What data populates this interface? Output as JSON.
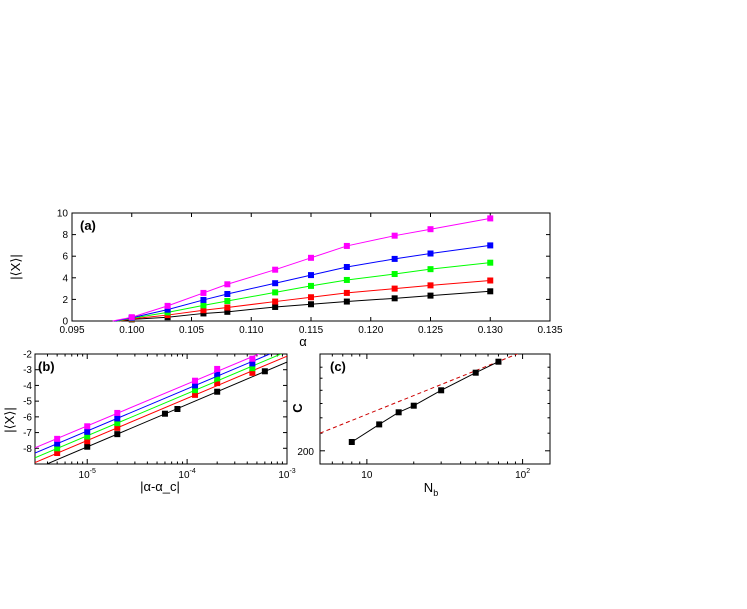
{
  "chart_data": [
    {
      "type": "line",
      "panel_label": "(a)",
      "xlabel": "α",
      "ylabel": "|⟨X⟩|",
      "xlim": [
        0.095,
        0.135
      ],
      "ylim": [
        0,
        10
      ],
      "xticks": [
        "0.095",
        "0.100",
        "0.105",
        "0.110",
        "0.115",
        "0.120",
        "0.125",
        "0.130",
        "0.135"
      ],
      "yticks": [
        "0",
        "2",
        "4",
        "6",
        "8",
        "10"
      ],
      "x": [
        0.1,
        0.103,
        0.106,
        0.108,
        0.112,
        0.115,
        0.118,
        0.122,
        0.125,
        0.13
      ],
      "series": [
        {
          "color": "#000000",
          "values": [
            0.15,
            0.35,
            0.7,
            0.85,
            1.3,
            1.55,
            1.8,
            2.1,
            2.35,
            2.75
          ]
        },
        {
          "color": "#ff0000",
          "values": [
            0.2,
            0.55,
            1.0,
            1.25,
            1.8,
            2.2,
            2.6,
            3.0,
            3.3,
            3.75
          ]
        },
        {
          "color": "#00ff00",
          "values": [
            0.25,
            0.8,
            1.45,
            1.85,
            2.65,
            3.25,
            3.8,
            4.35,
            4.8,
            5.4
          ]
        },
        {
          "color": "#0000ff",
          "values": [
            0.3,
            1.05,
            1.95,
            2.5,
            3.5,
            4.25,
            5.0,
            5.75,
            6.25,
            7.0
          ]
        },
        {
          "color": "#ff00ff",
          "values": [
            0.35,
            1.4,
            2.6,
            3.4,
            4.75,
            5.85,
            6.95,
            7.9,
            8.5,
            9.5
          ]
        }
      ],
      "series_start": [
        0.0992,
        0.099,
        0.0988,
        0.0986,
        0.0984
      ]
    },
    {
      "type": "line",
      "panel_label": "(b)",
      "xlabel": "|α-α_c|",
      "ylabel": "|⟨X⟩|",
      "xscale": "log",
      "xlim": [
        3e-06,
        0.001
      ],
      "ylim": [
        -9,
        -2
      ],
      "xticks": [
        {
          "v": 1e-05,
          "b": "10",
          "e": "-5"
        },
        {
          "v": 0.0001,
          "b": "10",
          "e": "-4"
        },
        {
          "v": 0.001,
          "b": "10",
          "e": "-3"
        }
      ],
      "yticks": [
        "-2",
        "-3",
        "-4",
        "-5",
        "-6",
        "-7",
        "-8"
      ],
      "series": [
        {
          "color": "#000000",
          "x": [
            1e-05,
            2e-05,
            6e-05,
            8e-05,
            0.0002,
            0.0006
          ],
          "values": [
            -7.9,
            -7.1,
            -5.8,
            -5.5,
            -4.4,
            -3.1
          ]
        },
        {
          "color": "#ff0000",
          "x": [
            5e-06,
            1e-05,
            2e-05,
            0.00012,
            0.0002,
            0.00045
          ],
          "values": [
            -8.3,
            -7.55,
            -6.7,
            -4.6,
            -3.85,
            -3.2
          ]
        },
        {
          "color": "#00ff00",
          "x": [
            5e-06,
            1e-05,
            2e-05,
            0.00012,
            0.0002,
            0.00045
          ],
          "values": [
            -8.0,
            -7.25,
            -6.4,
            -4.3,
            -3.55,
            -2.9
          ]
        },
        {
          "color": "#0000ff",
          "x": [
            5e-06,
            1e-05,
            2e-05,
            0.00012,
            0.0002,
            0.00045
          ],
          "values": [
            -7.7,
            -6.95,
            -6.1,
            -4.0,
            -3.25,
            -2.6
          ]
        },
        {
          "color": "#ff00ff",
          "x": [
            5e-06,
            1e-05,
            2e-05,
            0.00012,
            0.0002,
            0.00045
          ],
          "values": [
            -7.4,
            -6.6,
            -5.75,
            -3.7,
            -2.95,
            -2.3
          ]
        }
      ]
    },
    {
      "type": "line",
      "panel_label": "(c)",
      "xlabel": "N_b",
      "ylabel": "C",
      "xscale": "log",
      "xlim": [
        5,
        150
      ],
      "ylim_px_note": "",
      "ytick_label": "200",
      "xticks": [
        {
          "v": 10,
          "b": "10",
          "e": ""
        },
        {
          "v": 100,
          "b": "10",
          "e": "2"
        }
      ],
      "series": [
        {
          "color": "#000000",
          "x": [
            8,
            12,
            16,
            20,
            30,
            50,
            70
          ],
          "values": [
            0.2,
            0.36,
            0.47,
            0.53,
            0.67,
            0.83,
            0.93
          ]
        }
      ],
      "fit": {
        "color": "#cc0000",
        "style": "dashed",
        "x": [
          5,
          150
        ],
        "values": [
          0.28,
          1.12
        ]
      }
    }
  ]
}
